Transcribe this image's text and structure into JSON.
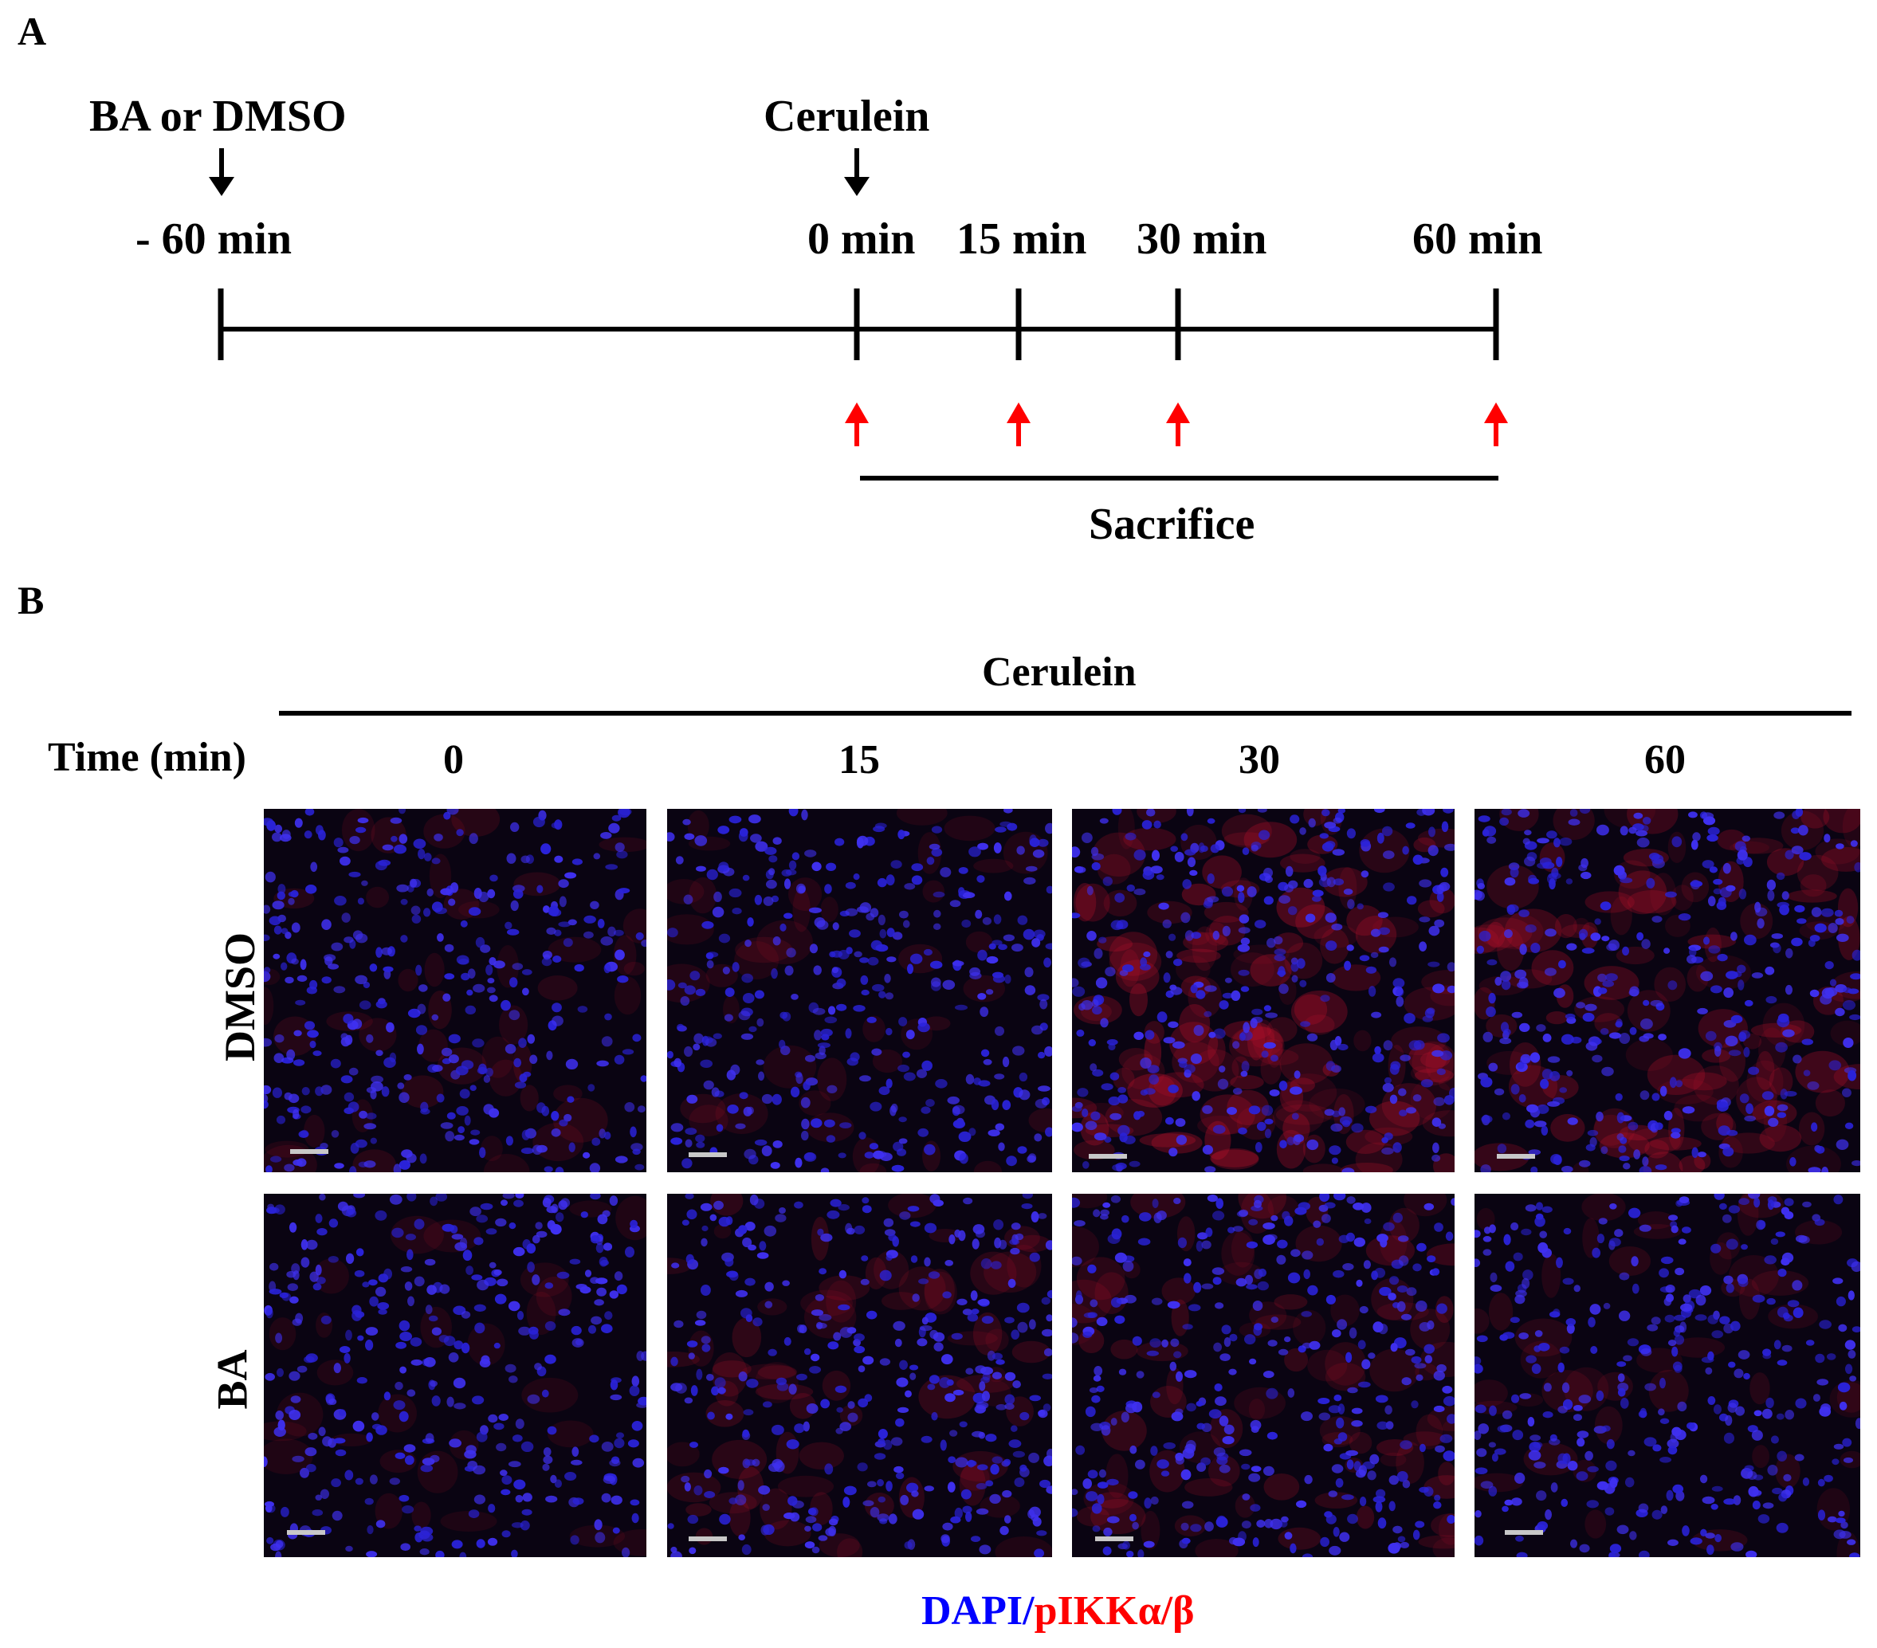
{
  "panel_a": {
    "letter": "A",
    "treatment_label": "BA or DMSO",
    "stimulus_label": "Cerulein",
    "timepoints": [
      "- 60 min",
      "0 min",
      "15 min",
      "30 min",
      "60 min"
    ],
    "sacrifice_label": "Sacrifice",
    "arrow_color_black": "#000000",
    "arrow_color_red": "#ff0000"
  },
  "panel_b": {
    "letter": "B",
    "header_label": "Cerulein",
    "time_label": "Time (min)",
    "time_values": [
      "0",
      "15",
      "30",
      "60"
    ],
    "row_labels": [
      "DMSO",
      "BA"
    ],
    "legend": {
      "dapi": "DAPI",
      "sep": "/",
      "marker": "pIKKα/β",
      "dapi_color": "#0000ff",
      "marker_color": "#ff0000"
    },
    "images": [
      {
        "group": "DMSO",
        "time": "0",
        "red_signal": 0.15
      },
      {
        "group": "DMSO",
        "time": "15",
        "red_signal": 0.12
      },
      {
        "group": "DMSO",
        "time": "30",
        "red_signal": 0.75
      },
      {
        "group": "DMSO",
        "time": "60",
        "red_signal": 0.6
      },
      {
        "group": "BA",
        "time": "0",
        "red_signal": 0.05
      },
      {
        "group": "BA",
        "time": "15",
        "red_signal": 0.3
      },
      {
        "group": "BA",
        "time": "30",
        "red_signal": 0.4
      },
      {
        "group": "BA",
        "time": "60",
        "red_signal": 0.15
      }
    ]
  }
}
